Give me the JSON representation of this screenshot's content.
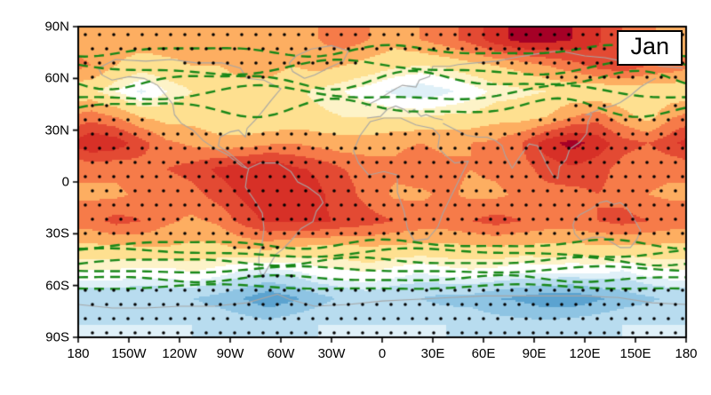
{
  "figure": {
    "period_label": "Jan"
  },
  "axes": {
    "x_ticks": [
      {
        "label": "180",
        "lon": -180
      },
      {
        "label": "150W",
        "lon": -150
      },
      {
        "label": "120W",
        "lon": -120
      },
      {
        "label": "90W",
        "lon": -90
      },
      {
        "label": "60W",
        "lon": -60
      },
      {
        "label": "30W",
        "lon": -30
      },
      {
        "label": "0",
        "lon": 0
      },
      {
        "label": "30E",
        "lon": 30
      },
      {
        "label": "60E",
        "lon": 60
      },
      {
        "label": "90E",
        "lon": 90
      },
      {
        "label": "120E",
        "lon": 120
      },
      {
        "label": "150E",
        "lon": 150
      },
      {
        "label": "180",
        "lon": 180
      }
    ],
    "y_ticks": [
      {
        "label": "90N",
        "lat": 90
      },
      {
        "label": "60N",
        "lat": 60
      },
      {
        "label": "30N",
        "lat": 30
      },
      {
        "label": "0",
        "lat": 0
      },
      {
        "label": "30S",
        "lat": -30
      },
      {
        "label": "60S",
        "lat": -60
      },
      {
        "label": "90S",
        "lat": -90
      }
    ]
  },
  "chart_data": {
    "type": "heatmap",
    "title": "Jan",
    "projection": "equirectangular",
    "lon_range": [
      -180,
      180
    ],
    "lat_range": [
      -90,
      90
    ],
    "x_tick_labels": [
      "180",
      "150W",
      "120W",
      "90W",
      "60W",
      "30W",
      "0",
      "30E",
      "60E",
      "90E",
      "120E",
      "150E",
      "180"
    ],
    "y_tick_labels": [
      "90N",
      "60N",
      "30N",
      "0",
      "30S",
      "60S",
      "90S"
    ],
    "grid": {
      "lon_centers": [
        -172.5,
        -157.5,
        -142.5,
        -127.5,
        -112.5,
        -97.5,
        -82.5,
        -67.5,
        -52.5,
        -37.5,
        -22.5,
        -7.5,
        7.5,
        22.5,
        37.5,
        52.5,
        67.5,
        82.5,
        97.5,
        112.5,
        127.5,
        142.5,
        157.5,
        172.5
      ],
      "lat_centers": [
        82.5,
        67.5,
        52.5,
        37.5,
        22.5,
        7.5,
        -7.5,
        -22.5,
        -37.5,
        -52.5,
        -67.5,
        -82.5
      ],
      "values": [
        [
          1.2,
          1.2,
          1.2,
          1.2,
          1.2,
          1.2,
          1.2,
          1.2,
          1.2,
          1.5,
          1.8,
          1.5,
          1.2,
          1.5,
          1.8,
          2.2,
          2.8,
          3.2,
          3.2,
          3.0,
          2.6,
          2.0,
          1.6,
          1.3
        ],
        [
          1.5,
          1.0,
          0.8,
          0.9,
          1.0,
          1.0,
          1.2,
          1.2,
          1.0,
          1.2,
          1.0,
          0.8,
          0.6,
          0.5,
          0.6,
          0.8,
          1.0,
          1.2,
          1.5,
          1.8,
          2.2,
          2.4,
          2.0,
          1.8
        ],
        [
          0.6,
          0.2,
          -0.3,
          0.2,
          0.5,
          0.6,
          0.8,
          0.8,
          0.6,
          0.4,
          0.2,
          0.0,
          -0.3,
          -0.5,
          -0.3,
          0.0,
          0.3,
          0.4,
          0.5,
          0.6,
          0.5,
          0.6,
          0.6,
          0.6
        ],
        [
          1.8,
          1.5,
          1.0,
          0.8,
          0.8,
          0.6,
          0.5,
          0.5,
          0.6,
          0.6,
          0.5,
          0.5,
          0.5,
          0.5,
          0.6,
          0.6,
          0.8,
          0.8,
          1.0,
          1.5,
          1.8,
          1.2,
          0.8,
          1.5
        ],
        [
          3.0,
          2.8,
          2.2,
          1.6,
          1.4,
          1.2,
          1.2,
          1.4,
          1.5,
          1.3,
          1.2,
          1.2,
          1.4,
          1.5,
          1.4,
          1.5,
          1.6,
          2.0,
          2.8,
          3.2,
          2.8,
          2.2,
          2.0,
          2.4
        ],
        [
          1.6,
          1.6,
          1.8,
          2.0,
          2.2,
          2.6,
          2.8,
          3.0,
          2.6,
          2.4,
          2.0,
          1.8,
          1.6,
          1.8,
          1.6,
          1.5,
          1.6,
          1.8,
          2.2,
          2.4,
          2.2,
          1.8,
          1.6,
          1.6
        ],
        [
          1.4,
          1.4,
          1.6,
          1.6,
          1.8,
          2.2,
          2.6,
          3.0,
          3.0,
          2.6,
          2.2,
          1.8,
          1.4,
          1.4,
          1.6,
          1.4,
          1.4,
          1.6,
          1.8,
          1.8,
          2.0,
          1.8,
          1.5,
          1.4
        ],
        [
          1.8,
          2.2,
          2.0,
          1.6,
          1.4,
          1.6,
          2.2,
          2.6,
          2.6,
          2.6,
          2.4,
          2.2,
          2.0,
          1.8,
          1.8,
          2.0,
          2.2,
          2.0,
          1.8,
          1.8,
          2.0,
          2.2,
          2.0,
          1.8
        ],
        [
          0.9,
          0.9,
          1.0,
          1.0,
          0.9,
          0.9,
          1.1,
          1.2,
          1.0,
          0.9,
          0.9,
          1.0,
          0.9,
          0.9,
          0.9,
          0.9,
          1.0,
          0.9,
          0.9,
          0.9,
          0.9,
          0.9,
          0.9,
          0.9
        ],
        [
          0.1,
          0.1,
          0.0,
          0.0,
          0.2,
          0.0,
          -0.3,
          -0.5,
          -0.3,
          0.0,
          0.1,
          0.2,
          0.0,
          -0.2,
          0.0,
          0.1,
          0.0,
          -0.2,
          -0.1,
          -0.2,
          -0.1,
          -0.3,
          0.0,
          0.1
        ],
        [
          -0.9,
          -0.9,
          -1.0,
          -0.9,
          -1.0,
          -1.2,
          -1.5,
          -1.9,
          -1.6,
          -1.2,
          -0.9,
          -0.8,
          -1.0,
          -1.0,
          -1.2,
          -1.2,
          -1.5,
          -1.6,
          -1.9,
          -1.9,
          -1.6,
          -1.3,
          -1.1,
          -0.9
        ],
        [
          -0.5,
          -0.5,
          -0.5,
          -0.5,
          -0.5,
          -0.6,
          -0.7,
          -0.8,
          -0.6,
          -0.5,
          -0.5,
          -0.5,
          -0.5,
          -0.5,
          -0.5,
          -0.6,
          -0.7,
          -0.8,
          -0.8,
          -0.7,
          -0.6,
          -0.5,
          -0.5,
          -0.5
        ]
      ]
    },
    "color_levels": [
      -1.5,
      -1.0,
      -0.5,
      -0.2,
      0.2,
      0.5,
      1.0,
      1.5,
      2.0,
      2.5,
      3.0
    ],
    "colors": [
      "#5ba3d0",
      "#8ec4e3",
      "#b8dcef",
      "#dff0f8",
      "#ffffff",
      "#fdf3c8",
      "#fee090",
      "#fdae61",
      "#f67b49",
      "#e34a33",
      "#d73027",
      "#a50026"
    ],
    "green_dashed_contours": [
      {
        "base_lat": 76,
        "amp": 2.5,
        "k": 3,
        "phase": 1.0
      },
      {
        "base_lat": 66,
        "amp": 3.5,
        "k": 2,
        "phase": 2.2
      },
      {
        "base_lat": 59,
        "amp": 4.0,
        "k": 3,
        "phase": 0.3
      },
      {
        "base_lat": 51,
        "amp": 3.5,
        "k": 2,
        "phase": 4.0
      },
      {
        "base_lat": 43,
        "amp": 4.0,
        "k": 3,
        "phase": 2.7
      },
      {
        "base_lat": -36,
        "amp": 2.0,
        "k": 3,
        "phase": 1.2
      },
      {
        "base_lat": -41,
        "amp": 2.0,
        "k": 2,
        "phase": 0.5
      },
      {
        "base_lat": -46,
        "amp": 1.8,
        "k": 3,
        "phase": 2.0
      },
      {
        "base_lat": -51,
        "amp": 1.5,
        "k": 2,
        "phase": 3.1
      },
      {
        "base_lat": -56,
        "amp": 1.5,
        "k": 3,
        "phase": 4.4
      },
      {
        "base_lat": -61,
        "amp": 1.2,
        "k": 2,
        "phase": 5.0
      }
    ],
    "contour_color": "#178717",
    "coastline_color": "#a6a6a6",
    "stipple": {
      "warm_min": 0.98,
      "cool_max": -0.45,
      "spacing_px": 16,
      "dot_radius_px": 1.8
    },
    "coastlines": [
      [
        [
          -168,
          66
        ],
        [
          -158,
          71
        ],
        [
          -140,
          70
        ],
        [
          -125,
          71
        ],
        [
          -110,
          69
        ],
        [
          -95,
          69
        ],
        [
          -84,
          66
        ],
        [
          -80,
          60
        ],
        [
          -70,
          59
        ],
        [
          -60,
          54
        ],
        [
          -66,
          47
        ],
        [
          -70,
          42
        ],
        [
          -75,
          36
        ],
        [
          -80,
          31
        ],
        [
          -81,
          26
        ],
        [
          -85,
          30
        ],
        [
          -90,
          29
        ],
        [
          -96,
          26
        ],
        [
          -97,
          21
        ],
        [
          -91,
          17
        ],
        [
          -85,
          12
        ],
        [
          -80,
          8
        ],
        [
          -83,
          9
        ],
        [
          -92,
          16
        ],
        [
          -100,
          20
        ],
        [
          -106,
          24
        ],
        [
          -112,
          30
        ],
        [
          -119,
          34
        ],
        [
          -123,
          39
        ],
        [
          -124,
          45
        ],
        [
          -128,
          50
        ],
        [
          -133,
          56
        ],
        [
          -141,
          60
        ],
        [
          -150,
          61
        ],
        [
          -160,
          59
        ],
        [
          -166,
          62
        ],
        [
          -168,
          66
        ]
      ],
      [
        [
          -46,
          60
        ],
        [
          -53,
          64
        ],
        [
          -55,
          69
        ],
        [
          -51,
          73
        ],
        [
          -42,
          77
        ],
        [
          -30,
          79
        ],
        [
          -20,
          76
        ],
        [
          -23,
          70
        ],
        [
          -32,
          66
        ],
        [
          -40,
          62
        ],
        [
          -46,
          60
        ]
      ],
      [
        [
          -79,
          8
        ],
        [
          -72,
          11
        ],
        [
          -62,
          11
        ],
        [
          -54,
          6
        ],
        [
          -50,
          0
        ],
        [
          -44,
          -3
        ],
        [
          -37,
          -8
        ],
        [
          -35,
          -12
        ],
        [
          -39,
          -17
        ],
        [
          -41,
          -23
        ],
        [
          -48,
          -27
        ],
        [
          -54,
          -34
        ],
        [
          -59,
          -39
        ],
        [
          -63,
          -42
        ],
        [
          -66,
          -47
        ],
        [
          -69,
          -52
        ],
        [
          -71,
          -55
        ],
        [
          -73,
          -50
        ],
        [
          -73,
          -43
        ],
        [
          -71,
          -35
        ],
        [
          -70,
          -27
        ],
        [
          -71,
          -18
        ],
        [
          -76,
          -10
        ],
        [
          -81,
          -3
        ],
        [
          -80,
          4
        ],
        [
          -79,
          8
        ]
      ],
      [
        [
          -7,
          35
        ],
        [
          1,
          37
        ],
        [
          11,
          37
        ],
        [
          20,
          33
        ],
        [
          30,
          31
        ],
        [
          34,
          27
        ],
        [
          33,
          20
        ],
        [
          38,
          15
        ],
        [
          43,
          11
        ],
        [
          51,
          12
        ],
        [
          46,
          2
        ],
        [
          41,
          -8
        ],
        [
          36,
          -18
        ],
        [
          33,
          -26
        ],
        [
          27,
          -33
        ],
        [
          19,
          -34
        ],
        [
          15,
          -27
        ],
        [
          13,
          -17
        ],
        [
          9,
          -6
        ],
        [
          9,
          4
        ],
        [
          1,
          6
        ],
        [
          -8,
          4
        ],
        [
          -14,
          11
        ],
        [
          -17,
          18
        ],
        [
          -13,
          27
        ],
        [
          -7,
          35
        ]
      ],
      [
        [
          -10,
          44
        ],
        [
          -2,
          48
        ],
        [
          3,
          51
        ],
        [
          8,
          54
        ],
        [
          12,
          56
        ],
        [
          20,
          55
        ],
        [
          22,
          59
        ],
        [
          28,
          61
        ],
        [
          30,
          67
        ],
        [
          40,
          67
        ],
        [
          45,
          68
        ],
        [
          55,
          69
        ],
        [
          68,
          70
        ],
        [
          78,
          72
        ],
        [
          90,
          74
        ],
        [
          105,
          76
        ],
        [
          120,
          73
        ],
        [
          132,
          72
        ],
        [
          142,
          70
        ],
        [
          155,
          70
        ],
        [
          165,
          67
        ],
        [
          178,
          66
        ]
      ],
      [
        [
          36,
          34
        ],
        [
          44,
          30
        ],
        [
          50,
          27
        ],
        [
          57,
          26
        ],
        [
          62,
          26
        ],
        [
          67,
          24
        ],
        [
          71,
          21
        ],
        [
          73,
          15
        ],
        [
          77,
          8
        ],
        [
          81,
          14
        ],
        [
          87,
          22
        ],
        [
          92,
          21
        ],
        [
          95,
          15
        ],
        [
          98,
          9
        ],
        [
          101,
          4
        ],
        [
          104,
          2
        ],
        [
          105,
          9
        ],
        [
          109,
          13
        ],
        [
          111,
          19
        ],
        [
          117,
          23
        ],
        [
          121,
          28
        ],
        [
          122,
          35
        ],
        [
          124,
          39
        ],
        [
          121,
          39
        ],
        [
          126,
          41
        ],
        [
          131,
          43
        ],
        [
          136,
          44
        ],
        [
          141,
          46
        ],
        [
          147,
          50
        ],
        [
          153,
          55
        ],
        [
          158,
          58
        ],
        [
          162,
          60
        ]
      ],
      [
        [
          -9,
          37
        ],
        [
          -1,
          38
        ],
        [
          3,
          42
        ],
        [
          8,
          44
        ],
        [
          13,
          42
        ],
        [
          16,
          40
        ],
        [
          19,
          42
        ],
        [
          23,
          38
        ],
        [
          26,
          39
        ],
        [
          31,
          37
        ],
        [
          36,
          36
        ]
      ],
      [
        [
          114,
          -22
        ],
        [
          117,
          -19
        ],
        [
          123,
          -16
        ],
        [
          129,
          -12
        ],
        [
          133,
          -11
        ],
        [
          137,
          -13
        ],
        [
          141,
          -12
        ],
        [
          144,
          -14
        ],
        [
          147,
          -18
        ],
        [
          150,
          -23
        ],
        [
          153,
          -28
        ],
        [
          151,
          -33
        ],
        [
          147,
          -38
        ],
        [
          141,
          -38
        ],
        [
          136,
          -35
        ],
        [
          131,
          -32
        ],
        [
          125,
          -32
        ],
        [
          118,
          -34
        ],
        [
          114,
          -30
        ],
        [
          113,
          -25
        ],
        [
          114,
          -22
        ]
      ],
      [
        [
          -180,
          -71
        ],
        [
          -160,
          -73
        ],
        [
          -140,
          -73
        ],
        [
          -120,
          -72
        ],
        [
          -100,
          -72
        ],
        [
          -80,
          -70
        ],
        [
          -62,
          -65
        ],
        [
          -55,
          -68
        ],
        [
          -40,
          -72
        ],
        [
          -20,
          -71
        ],
        [
          0,
          -69
        ],
        [
          20,
          -68
        ],
        [
          40,
          -67
        ],
        [
          60,
          -66
        ],
        [
          80,
          -66
        ],
        [
          100,
          -66
        ],
        [
          120,
          -66
        ],
        [
          140,
          -67
        ],
        [
          160,
          -70
        ],
        [
          180,
          -71
        ]
      ]
    ]
  }
}
